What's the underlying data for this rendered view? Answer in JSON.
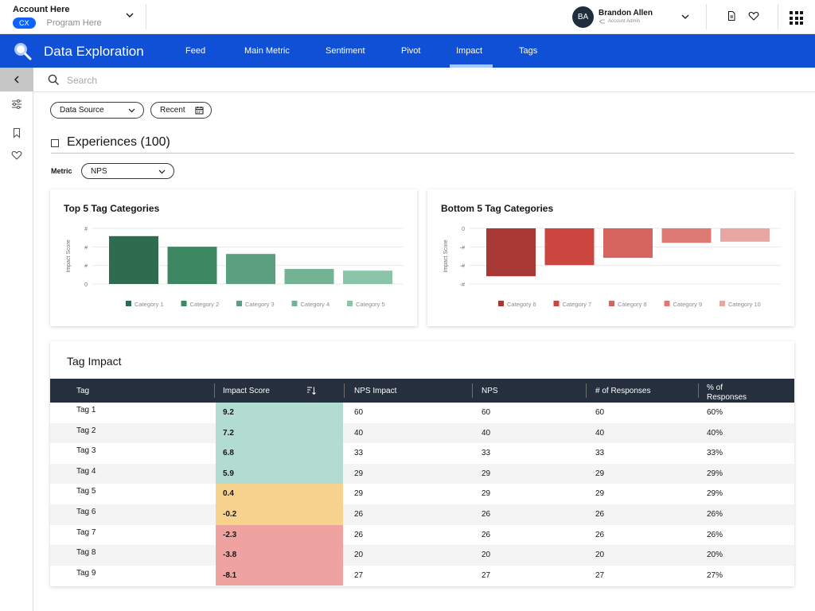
{
  "account": {
    "name": "Account Here",
    "badge": "CX",
    "program_placeholder": "Program Here"
  },
  "user": {
    "initials": "BA",
    "name": "Brandon Allen",
    "role": "Account Admin"
  },
  "app": {
    "title": "Data Exploration",
    "tabs": [
      {
        "label": "Feed"
      },
      {
        "label": "Main Metric"
      },
      {
        "label": "Sentiment"
      },
      {
        "label": "Pivot"
      },
      {
        "label": "Impact"
      },
      {
        "label": "Tags"
      }
    ],
    "active_tab": "Impact"
  },
  "search": {
    "placeholder": "Search"
  },
  "filters": {
    "data_source": "Data Source",
    "recent": "Recent",
    "experiences_label": "Experiences (100)",
    "metric_label": "Metric",
    "metric_value": "NPS"
  },
  "chart_data": [
    {
      "type": "bar",
      "title": "Top 5 Tag Categories",
      "ylabel": "Impact Score",
      "ytick_labels": [
        "#",
        "#",
        "#",
        "0"
      ],
      "ylim": [
        0,
        10
      ],
      "categories": [
        "Category 1",
        "Category 2",
        "Category 3",
        "Category 4",
        "Category 5"
      ],
      "values": [
        8.6,
        6.7,
        5.4,
        2.7,
        2.4
      ],
      "colors": [
        "#2f6b4f",
        "#3d8863",
        "#5aa07f",
        "#73b394",
        "#8cc4a8"
      ],
      "legend": "bottom"
    },
    {
      "type": "bar",
      "title": "Bottom 5 Tag Categories",
      "ylabel": "Impact Score",
      "ytick_labels": [
        "0",
        "-#",
        "-#",
        "-#"
      ],
      "ylim": [
        -10,
        0
      ],
      "categories": [
        "Category 6",
        "Category 7",
        "Category 8",
        "Category 9",
        "Category 10"
      ],
      "values": [
        -8.6,
        -6.6,
        -5.3,
        -2.6,
        -2.4
      ],
      "colors": [
        "#a93733",
        "#cc4640",
        "#d6645e",
        "#dd7a74",
        "#e8a7a3"
      ],
      "legend": "bottom"
    }
  ],
  "table": {
    "title": "Tag Impact",
    "columns": [
      "Tag",
      "Impact Score",
      "NPS Impact",
      "NPS",
      "# of Responses",
      "% of Responses"
    ],
    "rows": [
      {
        "tag": "Tag 1",
        "score": "9.2",
        "nps_impact": "60",
        "nps": "60",
        "responses": "60",
        "pct": "60%",
        "score_color": "#b2dccf"
      },
      {
        "tag": "Tag 2",
        "score": "7.2",
        "nps_impact": "40",
        "nps": "40",
        "responses": "40",
        "pct": "40%",
        "score_color": "#b2dccf"
      },
      {
        "tag": "Tag 3",
        "score": "6.8",
        "nps_impact": "33",
        "nps": "33",
        "responses": "33",
        "pct": "33%",
        "score_color": "#b2dccf"
      },
      {
        "tag": "Tag 4",
        "score": "5.9",
        "nps_impact": "29",
        "nps": "29",
        "responses": "29",
        "pct": "29%",
        "score_color": "#b2dccf"
      },
      {
        "tag": "Tag 5",
        "score": "0.4",
        "nps_impact": "29",
        "nps": "29",
        "responses": "29",
        "pct": "29%",
        "score_color": "#f8d38e"
      },
      {
        "tag": "Tag 6",
        "score": "-0.2",
        "nps_impact": "26",
        "nps": "26",
        "responses": "26",
        "pct": "26%",
        "score_color": "#f8d38e"
      },
      {
        "tag": "Tag 7",
        "score": "-2.3",
        "nps_impact": "26",
        "nps": "26",
        "responses": "26",
        "pct": "26%",
        "score_color": "#eea3a0"
      },
      {
        "tag": "Tag 8",
        "score": "-3.8",
        "nps_impact": "20",
        "nps": "20",
        "responses": "20",
        "pct": "20%",
        "score_color": "#eea3a0"
      },
      {
        "tag": "Tag 9",
        "score": "-8.1",
        "nps_impact": "27",
        "nps": "27",
        "responses": "27",
        "pct": "27%",
        "score_color": "#eea3a0"
      }
    ]
  },
  "colors": {
    "brand_blue": "#0f50d6",
    "header_dark": "#262f3d"
  }
}
